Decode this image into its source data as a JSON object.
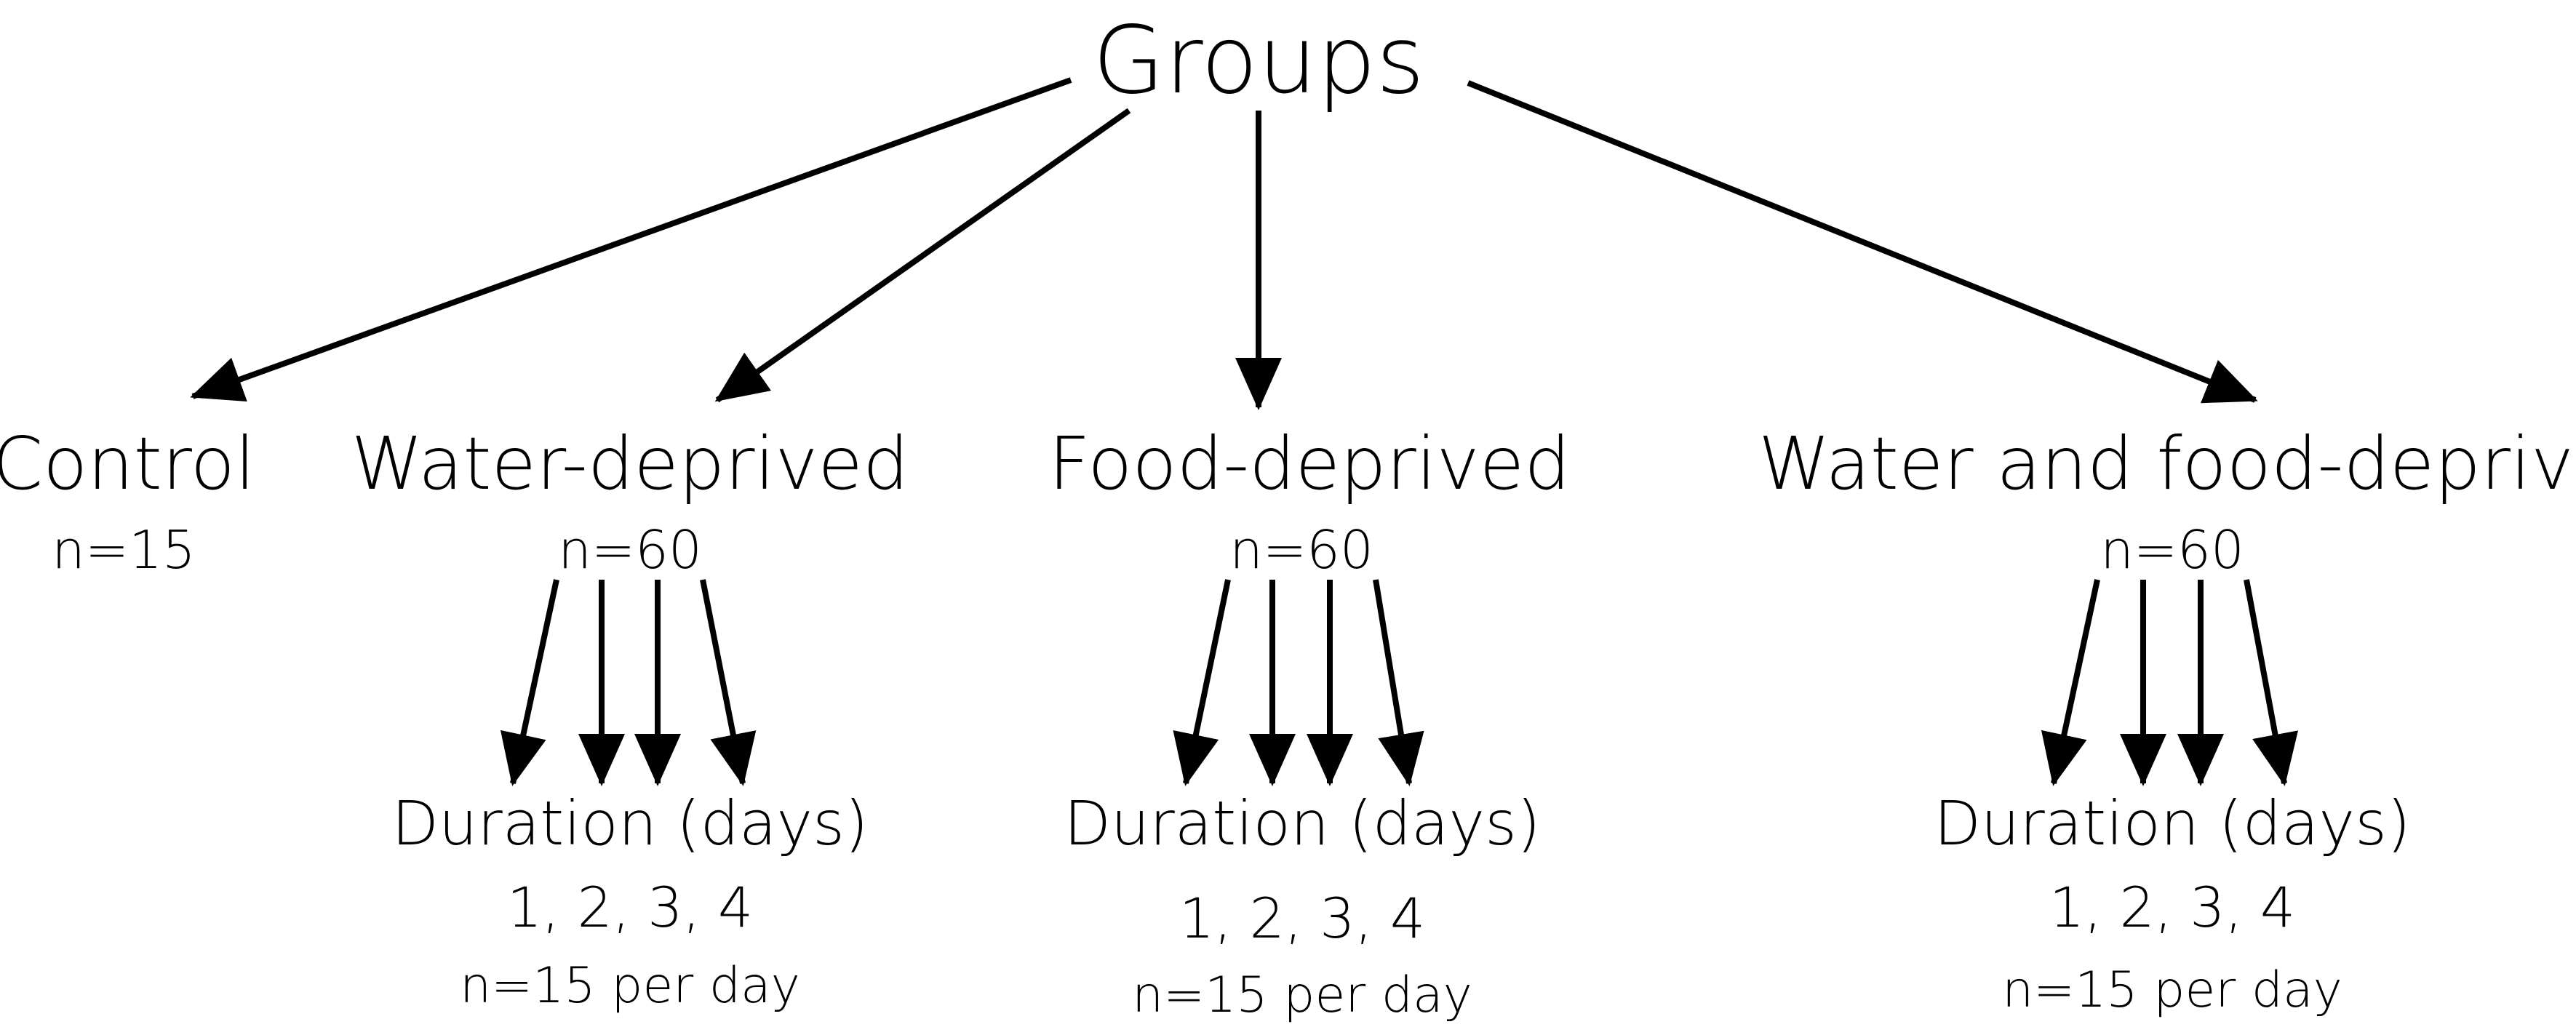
{
  "root": "Groups",
  "groups": [
    {
      "name": "Control",
      "n": "n=15"
    },
    {
      "name": "Water-deprived",
      "n": "n=60",
      "duration": "Duration (days)",
      "days": "1, 2, 3, 4",
      "per_day": "n=15 per day"
    },
    {
      "name": "Food-deprived",
      "n": "n=60",
      "duration": "Duration (days)",
      "days": "1, 2, 3, 4",
      "per_day": "n=15 per day"
    },
    {
      "name": "Water and food-deprived",
      "n": "n=60",
      "duration": "Duration (days)",
      "days": "1, 2, 3, 4",
      "per_day": "n=15 per day"
    }
  ]
}
